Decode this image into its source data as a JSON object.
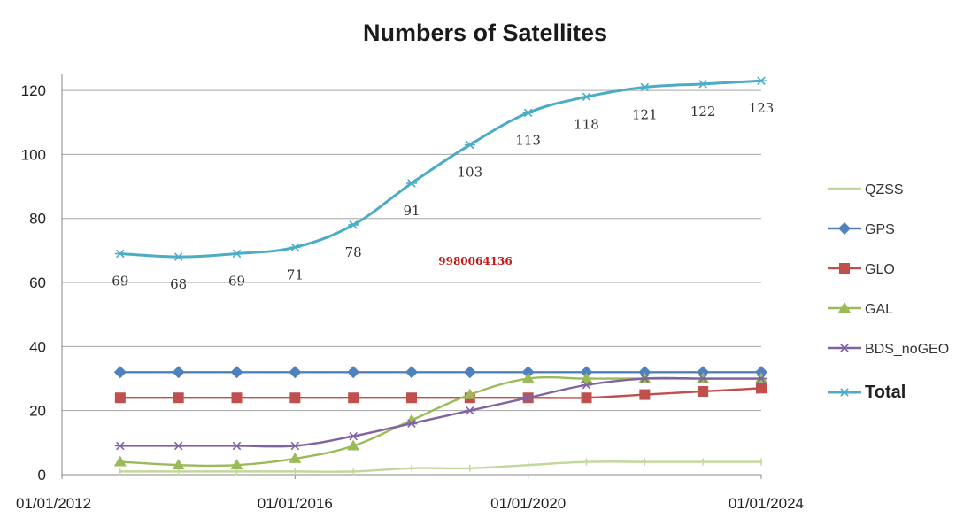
{
  "chart_data": {
    "type": "line",
    "title": "Numbers of Satellites",
    "x_tick_labels": [
      "01/01/2012",
      "01/01/2016",
      "01/01/2020",
      "01/01/2024"
    ],
    "x_tick_years": [
      2012,
      2016,
      2020,
      2024
    ],
    "xlim": [
      2012,
      2024
    ],
    "ylim": [
      0,
      125
    ],
    "y_ticks": [
      0,
      20,
      40,
      60,
      80,
      100,
      120
    ],
    "grid": true,
    "legend_position": "right",
    "x": [
      2013,
      2014,
      2015,
      2016,
      2017,
      2018,
      2019,
      2020,
      2021,
      2022,
      2023,
      2024
    ],
    "series": [
      {
        "name": "QZSS",
        "color": "#c3d69b",
        "marker": "line",
        "values": [
          1,
          1,
          1,
          1,
          1,
          2,
          2,
          3,
          4,
          4,
          4,
          4
        ]
      },
      {
        "name": "GPS",
        "color": "#4f81bd",
        "marker": "diamond",
        "values": [
          32,
          32,
          32,
          32,
          32,
          32,
          32,
          32,
          32,
          32,
          32,
          32
        ]
      },
      {
        "name": "GLO",
        "color": "#c0504d",
        "marker": "square",
        "values": [
          24,
          24,
          24,
          24,
          24,
          24,
          24,
          24,
          24,
          25,
          26,
          27
        ]
      },
      {
        "name": "GAL",
        "color": "#9bbb59",
        "marker": "triangle",
        "values": [
          4,
          3,
          3,
          5,
          9,
          17,
          25,
          30,
          30,
          30,
          30,
          30
        ]
      },
      {
        "name": "BDS_noGEO",
        "color": "#8064a2",
        "marker": "star",
        "values": [
          9,
          9,
          9,
          9,
          12,
          16,
          20,
          24,
          28,
          30,
          30,
          30
        ]
      },
      {
        "name": "Total",
        "color": "#4bacc6",
        "marker": "star",
        "bold": true,
        "values": [
          69,
          68,
          69,
          71,
          78,
          91,
          103,
          113,
          118,
          121,
          122,
          123
        ]
      }
    ],
    "total_labels": [
      "69",
      "68",
      "69",
      "71",
      "78",
      "91",
      "103",
      "113",
      "118",
      "121",
      "122",
      "123"
    ],
    "annotation": "9980064136"
  }
}
